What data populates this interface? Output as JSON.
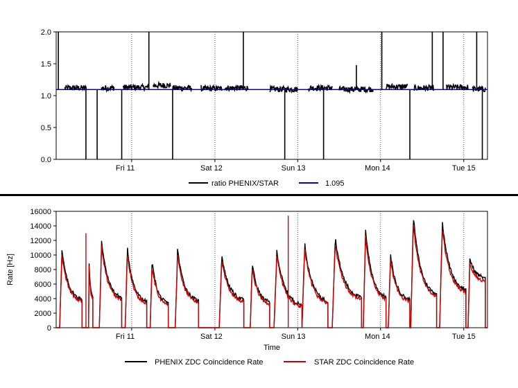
{
  "chart_data": [
    {
      "type": "line",
      "ylim": [
        0,
        2.0
      ],
      "y_ticks": [
        "0.0",
        "0.5",
        "1.0",
        "1.5",
        "2.0"
      ],
      "x_ticks": [
        "Fri 11",
        "Sat 12",
        "Sun 13",
        "Mon 14",
        "Tue 15"
      ],
      "grid": "vertical dotted at day boundaries",
      "legend_position": "bottom",
      "series": [
        {
          "name": "ratio PHENIX/STAR",
          "color": "#000000",
          "fills": [
            {
              "x": [
                0.02,
                0.07
              ],
              "y": 1.12
            },
            {
              "x": [
                0.105,
                0.135
              ],
              "y": 1.12
            },
            {
              "x": [
                0.155,
                0.215
              ],
              "y": 1.13
            },
            {
              "x": [
                0.225,
                0.265
              ],
              "y": 1.16
            },
            {
              "x": [
                0.27,
                0.315
              ],
              "y": 1.12
            },
            {
              "x": [
                0.335,
                0.385
              ],
              "y": 1.11
            },
            {
              "x": [
                0.39,
                0.445
              ],
              "y": 1.12
            },
            {
              "x": [
                0.495,
                0.56
              ],
              "y": 1.1
            },
            {
              "x": [
                0.585,
                0.64
              ],
              "y": 1.12
            },
            {
              "x": [
                0.655,
                0.735
              ],
              "y": 1.1
            },
            {
              "x": [
                0.765,
                0.815
              ],
              "y": 1.14
            },
            {
              "x": [
                0.83,
                0.875
              ],
              "y": 1.12
            },
            {
              "x": [
                0.905,
                0.955
              ],
              "y": 1.13
            },
            {
              "x": [
                0.965,
                0.995
              ],
              "y": 1.1
            }
          ],
          "spikes": [
            {
              "x": 0.005,
              "y": 2.0
            },
            {
              "x": 0.069,
              "y": 0.0
            },
            {
              "x": 0.095,
              "y": 0.0
            },
            {
              "x": 0.152,
              "y": 0.0
            },
            {
              "x": 0.215,
              "y": 2.0
            },
            {
              "x": 0.27,
              "y": 0.0
            },
            {
              "x": 0.434,
              "y": 2.0
            },
            {
              "x": 0.53,
              "y": 0.0
            },
            {
              "x": 0.62,
              "y": 0.0
            },
            {
              "x": 0.696,
              "y": 1.48
            },
            {
              "x": 0.755,
              "y": 2.0
            },
            {
              "x": 0.82,
              "y": 0.0
            },
            {
              "x": 0.872,
              "y": 2.0
            },
            {
              "x": 0.897,
              "y": 2.0
            },
            {
              "x": 0.975,
              "y": 2.0
            },
            {
              "x": 0.988,
              "y": 0.0
            }
          ]
        },
        {
          "name": "1.095",
          "color": "#0000cc",
          "constant": 1.095
        }
      ]
    },
    {
      "type": "line",
      "ylim": [
        0,
        16000
      ],
      "y_ticks": [
        "0",
        "2000",
        "4000",
        "6000",
        "8000",
        "10000",
        "12000",
        "14000",
        "16000"
      ],
      "x_ticks": [
        "Fri 11",
        "Sat 12",
        "Sun 13",
        "Mon 14",
        "Tue 15"
      ],
      "ylabel": "Rate [Hz]",
      "xlabel": "Time",
      "grid": "vertical dotted at day boundaries",
      "legend_position": "bottom",
      "fills": [
        {
          "x": [
            0.008,
            0.06
          ],
          "peak": 10700,
          "end": 3600
        },
        {
          "x": [
            0.075,
            0.085
          ],
          "peak": 9800,
          "end": 4000
        },
        {
          "x": [
            0.1,
            0.152
          ],
          "peak": 12100,
          "end": 3800
        },
        {
          "x": [
            0.16,
            0.21
          ],
          "peak": 11000,
          "end": 3300
        },
        {
          "x": [
            0.218,
            0.26
          ],
          "peak": 9300,
          "end": 3100
        },
        {
          "x": [
            0.276,
            0.33
          ],
          "peak": 10800,
          "end": 3400
        },
        {
          "x": [
            0.378,
            0.435
          ],
          "peak": 10100,
          "end": 3600
        },
        {
          "x": [
            0.45,
            0.495
          ],
          "peak": 9000,
          "end": 3300
        },
        {
          "x": [
            0.505,
            0.57
          ],
          "peak": 10600,
          "end": 2800
        },
        {
          "x": [
            0.57,
            0.63
          ],
          "peak": 11700,
          "end": 3300
        },
        {
          "x": [
            0.64,
            0.708
          ],
          "peak": 12500,
          "end": 3800
        },
        {
          "x": [
            0.712,
            0.765
          ],
          "peak": 13600,
          "end": 3800
        },
        {
          "x": [
            0.77,
            0.82
          ],
          "peak": 10100,
          "end": 3600
        },
        {
          "x": [
            0.822,
            0.882
          ],
          "peak": 15400,
          "end": 4200
        },
        {
          "x": [
            0.889,
            0.95
          ],
          "peak": 14800,
          "end": 4800
        },
        {
          "x": [
            0.955,
            0.995
          ],
          "peak": 9600,
          "end": 6800
        }
      ],
      "series": [
        {
          "name": "PHENIX ZDC Coincidence Rate",
          "color": "#000000",
          "scale": 1.0
        },
        {
          "name": "STAR ZDC Coincidence Rate",
          "color": "#cc0000",
          "scale": 0.93,
          "spikes": [
            {
              "x": 0.069,
              "y": 13000
            },
            {
              "x": 0.538,
              "y": 15400
            }
          ]
        }
      ]
    }
  ]
}
